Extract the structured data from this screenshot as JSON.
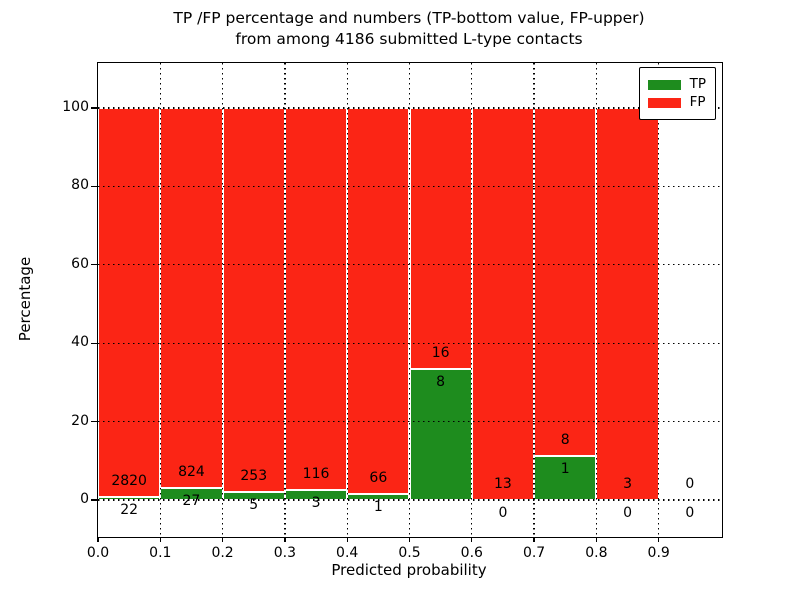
{
  "figure": {
    "title_line1": "TP /FP percentage and numbers (TP-bottom value, FP-upper)",
    "title_line2": "from among 4186 submitted L-type contacts"
  },
  "chart_data": {
    "type": "bar",
    "stacked": true,
    "normalized_to_percent": true,
    "title": "TP /FP percentage and numbers (TP-bottom value, FP-upper) from among 4186 submitted L-type contacts",
    "total_submitted_contacts": 4186,
    "xlabel": "Predicted probability",
    "ylabel": "Percentage",
    "xlim": [
      0.0,
      1.0
    ],
    "ylim": [
      -7,
      110
    ],
    "x_tick_labels": [
      "0.0",
      "0.1",
      "0.2",
      "0.3",
      "0.4",
      "0.5",
      "0.6",
      "0.7",
      "0.8",
      "0.9"
    ],
    "y_tick_values": [
      0,
      20,
      40,
      60,
      80,
      100
    ],
    "grid": "dotted-black-both-axes",
    "legend": {
      "position": "upper right",
      "entries": [
        {
          "label": "TP",
          "color": "#1e8c1e"
        },
        {
          "label": "FP",
          "color": "#fb2515"
        }
      ]
    },
    "colors": {
      "tp": "#1e8c1e",
      "fp": "#fb2515",
      "bar_edge": "#ffffff",
      "grid": "#000000"
    },
    "bins": [
      {
        "x_start": 0.0,
        "x_end": 0.1,
        "tp": 22,
        "fp": 2820,
        "tp_pct": 0.77,
        "fp_pct": 99.23
      },
      {
        "x_start": 0.1,
        "x_end": 0.2,
        "tp": 27,
        "fp": 824,
        "tp_pct": 3.17,
        "fp_pct": 96.83
      },
      {
        "x_start": 0.2,
        "x_end": 0.3,
        "tp": 5,
        "fp": 253,
        "tp_pct": 1.94,
        "fp_pct": 98.06
      },
      {
        "x_start": 0.3,
        "x_end": 0.4,
        "tp": 3,
        "fp": 116,
        "tp_pct": 2.52,
        "fp_pct": 97.48
      },
      {
        "x_start": 0.4,
        "x_end": 0.5,
        "tp": 1,
        "fp": 66,
        "tp_pct": 1.49,
        "fp_pct": 98.51
      },
      {
        "x_start": 0.5,
        "x_end": 0.6,
        "tp": 8,
        "fp": 16,
        "tp_pct": 33.33,
        "fp_pct": 66.67
      },
      {
        "x_start": 0.6,
        "x_end": 0.7,
        "tp": 0,
        "fp": 13,
        "tp_pct": 0.0,
        "fp_pct": 100.0
      },
      {
        "x_start": 0.7,
        "x_end": 0.8,
        "tp": 1,
        "fp": 8,
        "tp_pct": 11.11,
        "fp_pct": 88.89
      },
      {
        "x_start": 0.8,
        "x_end": 0.9,
        "tp": 0,
        "fp": 3,
        "tp_pct": 0.0,
        "fp_pct": 100.0
      },
      {
        "x_start": 0.9,
        "x_end": 1.0,
        "tp": 0,
        "fp": 0,
        "tp_pct": 0.0,
        "fp_pct": 0.0
      }
    ]
  }
}
